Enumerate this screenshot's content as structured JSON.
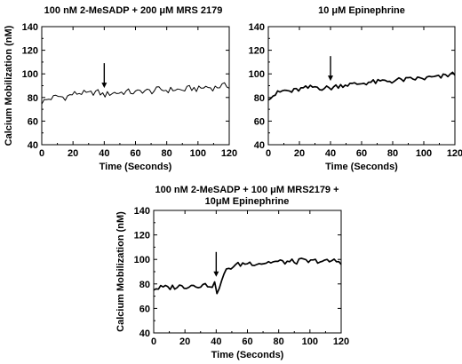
{
  "chart_data": [
    {
      "type": "line",
      "title": "100 nM 2-MeSADP + 200 μM MRS 2179",
      "xlabel": "Time (Seconds)",
      "ylabel": "Calcium Mobilization (nM)",
      "xlim": [
        0,
        120
      ],
      "ylim": [
        40,
        140
      ],
      "xticks": [
        0,
        20,
        40,
        60,
        80,
        100,
        120
      ],
      "yticks": [
        40,
        60,
        80,
        100,
        120,
        140
      ],
      "grid": false,
      "line_weight": "thin",
      "arrow_at_x": 40,
      "x": [
        0,
        5,
        10,
        15,
        20,
        25,
        30,
        35,
        40,
        45,
        50,
        55,
        60,
        65,
        70,
        75,
        80,
        85,
        90,
        95,
        100,
        105,
        110,
        115,
        120
      ],
      "y": [
        76,
        79,
        81,
        80,
        83,
        84,
        83,
        85,
        82,
        84,
        84,
        85,
        84,
        86,
        85,
        87,
        86,
        87,
        86,
        88,
        87,
        89,
        88,
        90,
        90
      ]
    },
    {
      "type": "line",
      "title": "10 μM Epinephrine",
      "xlabel": "Time (Seconds)",
      "ylabel": "",
      "xlim": [
        0,
        120
      ],
      "ylim": [
        40,
        140
      ],
      "xticks": [
        0,
        20,
        40,
        60,
        80,
        100,
        120
      ],
      "yticks": [
        40,
        60,
        80,
        100,
        120,
        140
      ],
      "grid": false,
      "line_weight": "thick",
      "arrow_at_x": 40,
      "x": [
        0,
        5,
        10,
        15,
        20,
        25,
        30,
        35,
        40,
        45,
        50,
        55,
        60,
        65,
        70,
        75,
        80,
        85,
        90,
        95,
        100,
        105,
        110,
        115,
        120
      ],
      "y": [
        80,
        83,
        86,
        85,
        87,
        88,
        89,
        88,
        88,
        90,
        91,
        91,
        92,
        93,
        93,
        94,
        94,
        95,
        95,
        96,
        96,
        97,
        97,
        99,
        100
      ]
    },
    {
      "type": "line",
      "title": "100 nM 2-MeSADP + 100 μM MRS2179 + 10μM Epinephrine",
      "xlabel": "Time (Seconds)",
      "ylabel": "Calcium Mobilization (nM)",
      "xlim": [
        0,
        120
      ],
      "ylim": [
        40,
        140
      ],
      "xticks": [
        0,
        20,
        40,
        60,
        80,
        100,
        120
      ],
      "yticks": [
        40,
        60,
        80,
        100,
        120,
        140
      ],
      "grid": false,
      "line_weight": "thick",
      "arrow_at_x": 40,
      "x": [
        0,
        5,
        10,
        15,
        20,
        25,
        30,
        35,
        38,
        40,
        41,
        43,
        45,
        47,
        50,
        55,
        60,
        65,
        70,
        75,
        80,
        85,
        90,
        95,
        100,
        105,
        110,
        115,
        120
      ],
      "y": [
        76,
        77,
        77,
        78,
        78,
        79,
        79,
        79,
        79,
        80,
        68,
        82,
        87,
        92,
        94,
        96,
        97,
        97,
        97,
        98,
        98,
        98,
        98,
        99,
        98,
        99,
        98,
        99,
        98
      ]
    }
  ]
}
